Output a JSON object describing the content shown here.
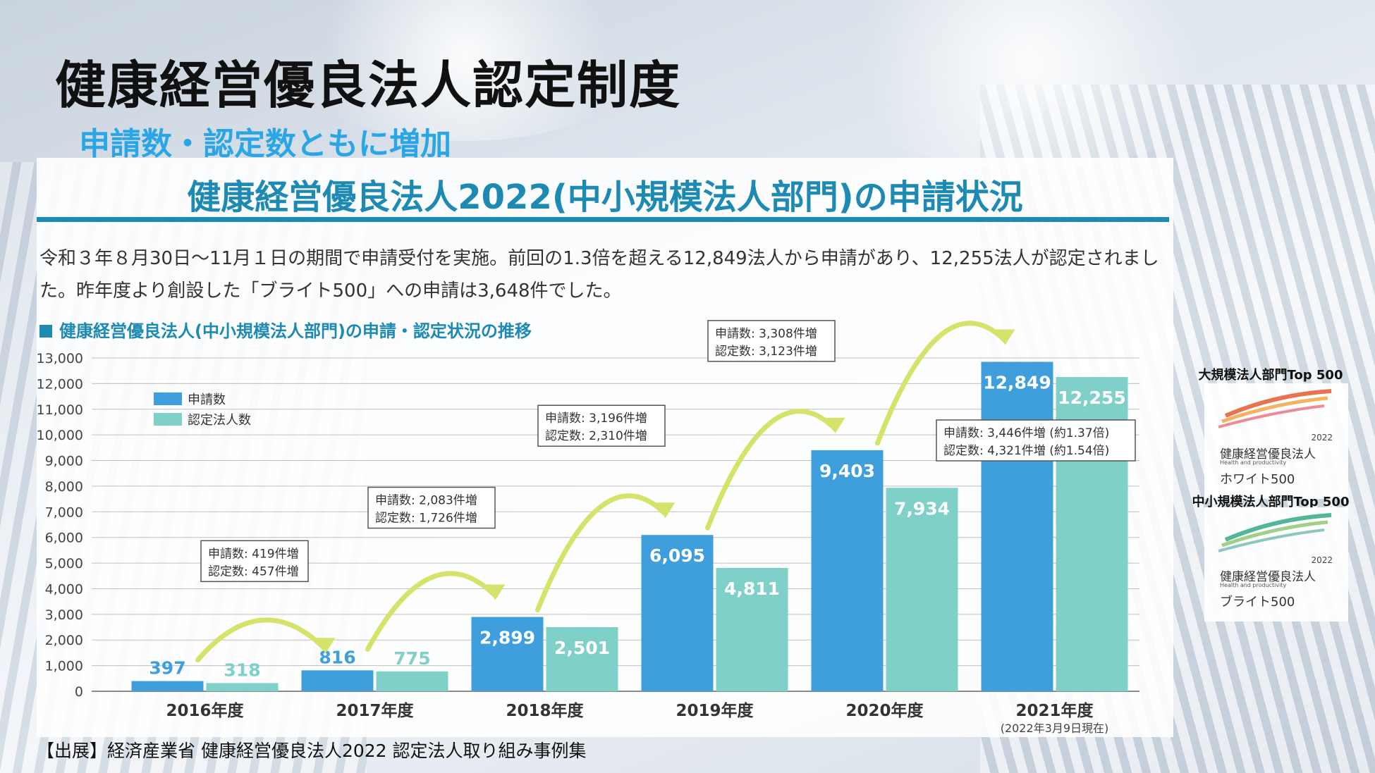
{
  "page": {
    "title": "健康経営優良法人認定制度",
    "subtitle": "申請数・認定数ともに増加"
  },
  "panel": {
    "title": "健康経営優良法人2022(中小規模法人部門)の申請状況",
    "description": "令和３年８月30日～11月１日の期間で申請受付を実施。前回の1.3倍を超える12,849法人から申請があり、12,255法人が認定されました。昨年度より創設した「ブライト500」への申請は3,648件でした。",
    "chart_heading": "健康経営優良法人(中小規模法人部門)の申請・認定状況の推移"
  },
  "chart_data": {
    "type": "bar",
    "categories": [
      "2016年度",
      "2017年度",
      "2018年度",
      "2019年度",
      "2020年度",
      "2021年度"
    ],
    "category_notes": [
      "",
      "",
      "",
      "",
      "",
      "(2022年3月9日現在)"
    ],
    "series": [
      {
        "name": "申請数",
        "values": [
          397,
          816,
          2899,
          6095,
          9403,
          12849
        ],
        "color": "#3f9fdc"
      },
      {
        "name": "認定法人数",
        "values": [
          318,
          775,
          2501,
          4811,
          7934,
          12255
        ],
        "color": "#7fd0c8"
      }
    ],
    "data_labels": {
      "申請数": [
        "397",
        "816",
        "2,899",
        "6,095",
        "9,403",
        "12,849"
      ],
      "認定法人数": [
        "318",
        "775",
        "2,501",
        "4,811",
        "7,934",
        "12,255"
      ]
    },
    "ylim": [
      0,
      13000
    ],
    "yticks": [
      "0",
      "1,000",
      "2,000",
      "3,000",
      "4,000",
      "5,000",
      "6,000",
      "7,000",
      "8,000",
      "9,000",
      "10,000",
      "11,000",
      "12,000",
      "13,000"
    ],
    "grid": true,
    "legend_position": "top-left",
    "annotations": [
      {
        "line1": "申請数: 419件増",
        "line2": "認定数: 457件増"
      },
      {
        "line1": "申請数: 2,083件増",
        "line2": "認定数: 1,726件増"
      },
      {
        "line1": "申請数: 3,196件増",
        "line2": "認定数: 2,310件増"
      },
      {
        "line1": "申請数: 3,308件増",
        "line2": "認定数: 3,123件増"
      },
      {
        "line1": "申請数: 3,446件増 (約1.37倍)",
        "line2": "認定数: 4,321件増 (約1.54倍)"
      }
    ],
    "arrow_color": "#d6e36a"
  },
  "logos": [
    {
      "header": "大規模法人部門Top 500",
      "year": "2022",
      "name": "健康経営優良法人",
      "en": "Health and productivity",
      "rank": "ホワイト500",
      "color": "#e8643c"
    },
    {
      "header": "中小規模法人部門Top 500",
      "year": "2022",
      "name": "健康経営優良法人",
      "en": "Health and productivity",
      "rank": "ブライト500",
      "color": "#3fae8c"
    }
  ],
  "source": "【出展】経済産業省 健康経営優良法人2022 認定法人取り組み事例集"
}
